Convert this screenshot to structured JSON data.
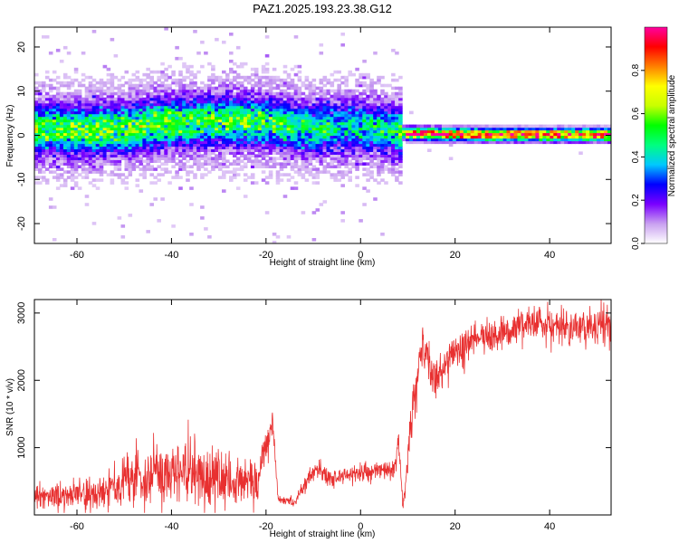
{
  "figure_title": "PAZ1.2025.193.23.38.G12",
  "chart_data": [
    {
      "type": "heatmap",
      "xlabel": "Height of straight line (km)",
      "ylabel": "Frequency (Hz)",
      "xlim": [
        -69,
        53
      ],
      "ylim": [
        -24.5,
        24.5
      ],
      "x_ticks": [
        -60,
        -40,
        -20,
        0,
        20,
        40
      ],
      "y_ticks": [
        -20,
        -10,
        0,
        10,
        20
      ],
      "grid": false,
      "colormap": "rainbow",
      "colorbar": {
        "label": "Normalized spectral amplitude",
        "range": [
          0,
          1
        ],
        "ticks": [
          0.0,
          0.2,
          0.4,
          0.6,
          0.8
        ],
        "tick_labels": [
          "0.0",
          "0.2",
          "0.4",
          "0.6",
          "0.8"
        ],
        "colors": [
          "#ffffff",
          "#c9a0f0",
          "#7a00ff",
          "#0000ff",
          "#00c8ff",
          "#00ff80",
          "#00ff00",
          "#c8ff00",
          "#ffff00",
          "#ff8000",
          "#ff0000",
          "#ff00a0"
        ]
      },
      "ridge": [
        {
          "x": -69,
          "f": 1.5,
          "a": 0.45
        },
        {
          "x": -60,
          "f": 1.0,
          "a": 0.45
        },
        {
          "x": -50,
          "f": 1.5,
          "a": 0.45
        },
        {
          "x": -40,
          "f": 3.0,
          "a": 0.45
        },
        {
          "x": -35,
          "f": 3.0,
          "a": 0.4
        },
        {
          "x": -28,
          "f": 3.5,
          "a": 0.45
        },
        {
          "x": -20,
          "f": 3.0,
          "a": 0.4
        },
        {
          "x": -10,
          "f": 1.5,
          "a": 0.35
        },
        {
          "x": 0,
          "f": 2.0,
          "a": 0.3
        },
        {
          "x": 8,
          "f": 1.0,
          "a": 0.35
        },
        {
          "x": 10,
          "f": 0.5,
          "a": 0.9
        },
        {
          "x": 20,
          "f": 0.3,
          "a": 0.9
        },
        {
          "x": 30,
          "f": 0.2,
          "a": 0.9
        },
        {
          "x": 40,
          "f": 0.2,
          "a": 0.9
        },
        {
          "x": 53,
          "f": 0.2,
          "a": 0.9
        }
      ]
    },
    {
      "type": "line",
      "xlabel": "Height of straight line (km)",
      "ylabel": "SNR (10 * v/v)",
      "xlim": [
        -69,
        53
      ],
      "ylim": [
        0,
        3200
      ],
      "x_ticks": [
        -60,
        -40,
        -20,
        0,
        20,
        40
      ],
      "y_ticks": [
        1000,
        2000,
        3000
      ],
      "grid": false,
      "color": "#e83030",
      "envelope": [
        {
          "x": -69,
          "mean": 250,
          "spread": 180
        },
        {
          "x": -56,
          "mean": 320,
          "spread": 220
        },
        {
          "x": -50,
          "mean": 500,
          "spread": 350
        },
        {
          "x": -42,
          "mean": 650,
          "spread": 450
        },
        {
          "x": -30,
          "mean": 550,
          "spread": 450
        },
        {
          "x": -22,
          "mean": 450,
          "spread": 350
        },
        {
          "x": -18.5,
          "mean": 1400,
          "spread": 200
        },
        {
          "x": -17.5,
          "mean": 250,
          "spread": 80
        },
        {
          "x": -14,
          "mean": 180,
          "spread": 60
        },
        {
          "x": -10,
          "mean": 650,
          "spread": 150
        },
        {
          "x": -5,
          "mean": 550,
          "spread": 120
        },
        {
          "x": 0,
          "mean": 620,
          "spread": 120
        },
        {
          "x": 7,
          "mean": 700,
          "spread": 120
        },
        {
          "x": 8,
          "mean": 1100,
          "spread": 200
        },
        {
          "x": 9,
          "mean": 100,
          "spread": 60
        },
        {
          "x": 11,
          "mean": 1600,
          "spread": 350
        },
        {
          "x": 13,
          "mean": 2500,
          "spread": 350
        },
        {
          "x": 16,
          "mean": 2000,
          "spread": 300
        },
        {
          "x": 20,
          "mean": 2400,
          "spread": 300
        },
        {
          "x": 25,
          "mean": 2600,
          "spread": 250
        },
        {
          "x": 30,
          "mean": 2700,
          "spread": 250
        },
        {
          "x": 35,
          "mean": 2850,
          "spread": 250
        },
        {
          "x": 42,
          "mean": 2800,
          "spread": 250
        },
        {
          "x": 53,
          "mean": 2750,
          "spread": 300
        }
      ]
    }
  ]
}
